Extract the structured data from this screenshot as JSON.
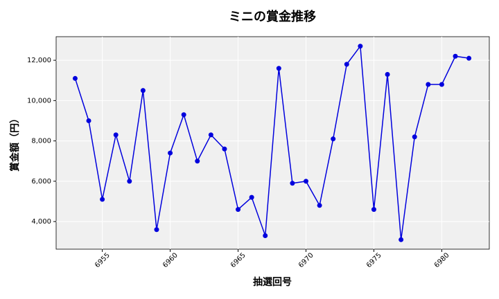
{
  "chart_data": {
    "type": "line",
    "title": "ミニの賞金推移",
    "x_label": "抽選回号",
    "y_label": "賞金額（円）",
    "x": [
      6953,
      6954,
      6955,
      6956,
      6957,
      6958,
      6959,
      6960,
      6961,
      6962,
      6963,
      6964,
      6965,
      6966,
      6967,
      6968,
      6969,
      6970,
      6971,
      6972,
      6973,
      6974,
      6975,
      6976,
      6977,
      6978,
      6979,
      6980,
      6981,
      6982
    ],
    "series": [
      {
        "name": "賞金額",
        "color": "#0000dd",
        "values": [
          11100,
          9000,
          5100,
          8300,
          6000,
          10500,
          3600,
          7400,
          9300,
          7000,
          8300,
          7600,
          4600,
          5200,
          3300,
          11600,
          5900,
          6000,
          4800,
          8100,
          11800,
          12700,
          4600,
          11300,
          3100,
          8200,
          10800,
          10800,
          12200,
          12100
        ]
      }
    ],
    "xlim": [
      6951.6,
      6983.5
    ],
    "xticks": [
      6955,
      6960,
      6965,
      6970,
      6975,
      6980
    ],
    "ylim": [
      2630,
      13170
    ],
    "yticks": [
      {
        "value": 4000,
        "label": "4,000"
      },
      {
        "value": 6000,
        "label": "6,000"
      },
      {
        "value": 8000,
        "label": "8,000"
      },
      {
        "value": 10000,
        "label": "10,000"
      },
      {
        "value": 12000,
        "label": "12,000"
      }
    ],
    "grid": true,
    "background": "#f0f0f0"
  }
}
